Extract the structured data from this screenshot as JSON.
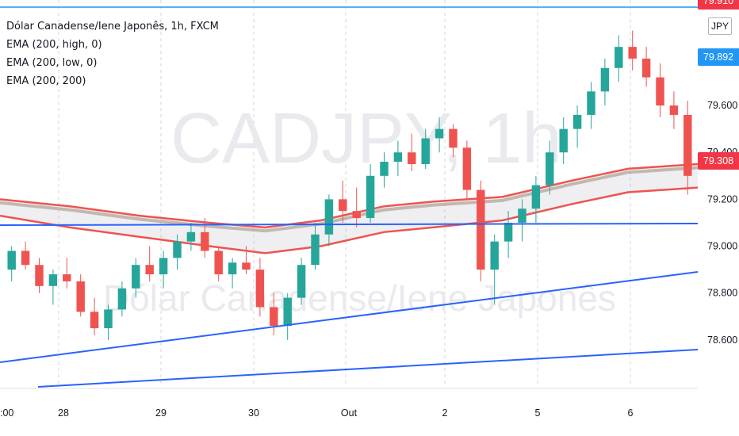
{
  "legend": {
    "title": "Dólar Canadense/Iene Japonês, 1h, FXCM",
    "indicators": [
      "EMA (200, high, 0)",
      "EMA (200, low, 0)",
      "EMA (200, 200)"
    ]
  },
  "watermark": {
    "symbol": "CADJPY, 1h",
    "description": "Dólar Canadense/Iene Japonês"
  },
  "currency_badge": "JPY",
  "price_tags": {
    "top_partial": "79.910",
    "blue": "79.892",
    "red": "79.308"
  },
  "colors": {
    "up_candle": "#26a69a",
    "down_candle": "#ef5350",
    "ema_band": "#ef5350",
    "ema_mid": "#9e8a7a",
    "trend_lines": "#2962ff",
    "blue_tag": "#2196f3",
    "red_tag": "#f23645"
  },
  "chart_data": {
    "type": "candlestick",
    "symbol": "CADJPY",
    "timeframe": "1h",
    "y_ticks": [
      "79.600",
      "79.400",
      "79.200",
      "79.000",
      "78.800",
      "78.600"
    ],
    "ylim": [
      78.4,
      80.05
    ],
    "x_ticks": [
      ":00",
      "28",
      "29",
      "30",
      "Out",
      "2",
      "5",
      "6"
    ],
    "last_price": 79.308,
    "horizontal_line_price": 79.07,
    "ema_high_points": [
      [
        0,
        79.2
      ],
      [
        0.1,
        79.17
      ],
      [
        0.2,
        79.13
      ],
      [
        0.3,
        79.1
      ],
      [
        0.38,
        79.08
      ],
      [
        0.46,
        79.11
      ],
      [
        0.55,
        79.17
      ],
      [
        0.62,
        79.19
      ],
      [
        0.72,
        79.21
      ],
      [
        0.82,
        79.28
      ],
      [
        0.9,
        79.33
      ],
      [
        1,
        79.35
      ]
    ],
    "ema_low_points": [
      [
        0,
        79.13
      ],
      [
        0.1,
        79.08
      ],
      [
        0.2,
        79.04
      ],
      [
        0.3,
        79.0
      ],
      [
        0.38,
        78.97
      ],
      [
        0.46,
        79.0
      ],
      [
        0.55,
        79.06
      ],
      [
        0.62,
        79.08
      ],
      [
        0.72,
        79.11
      ],
      [
        0.82,
        79.18
      ],
      [
        0.9,
        79.23
      ],
      [
        1,
        79.25
      ]
    ],
    "candles": [
      [
        78.9,
        79.0,
        78.85,
        78.98
      ],
      [
        78.98,
        79.02,
        78.9,
        78.92
      ],
      [
        78.92,
        78.95,
        78.8,
        78.83
      ],
      [
        78.83,
        78.9,
        78.75,
        78.88
      ],
      [
        78.88,
        78.95,
        78.82,
        78.85
      ],
      [
        78.85,
        78.88,
        78.7,
        78.72
      ],
      [
        78.72,
        78.78,
        78.62,
        78.65
      ],
      [
        78.65,
        78.75,
        78.6,
        78.73
      ],
      [
        78.73,
        78.85,
        78.7,
        78.82
      ],
      [
        78.82,
        78.95,
        78.78,
        78.92
      ],
      [
        78.92,
        79.0,
        78.85,
        78.88
      ],
      [
        78.88,
        78.98,
        78.82,
        78.95
      ],
      [
        78.95,
        79.05,
        78.9,
        79.02
      ],
      [
        79.02,
        79.1,
        78.98,
        79.06
      ],
      [
        79.06,
        79.12,
        78.95,
        78.98
      ],
      [
        78.98,
        79.0,
        78.85,
        78.88
      ],
      [
        78.88,
        78.95,
        78.82,
        78.93
      ],
      [
        78.93,
        79.0,
        78.88,
        78.9
      ],
      [
        78.9,
        78.95,
        78.7,
        78.74
      ],
      [
        78.74,
        78.8,
        78.62,
        78.66
      ],
      [
        78.66,
        78.8,
        78.6,
        78.78
      ],
      [
        78.78,
        78.95,
        78.75,
        78.92
      ],
      [
        78.92,
        79.1,
        78.9,
        79.05
      ],
      [
        79.05,
        79.22,
        79.0,
        79.2
      ],
      [
        79.2,
        79.28,
        79.1,
        79.15
      ],
      [
        79.15,
        79.25,
        79.08,
        79.12
      ],
      [
        79.12,
        79.35,
        79.1,
        79.3
      ],
      [
        79.3,
        79.4,
        79.25,
        79.36
      ],
      [
        79.36,
        79.45,
        79.3,
        79.4
      ],
      [
        79.4,
        79.48,
        79.32,
        79.35
      ],
      [
        79.35,
        79.5,
        79.33,
        79.46
      ],
      [
        79.46,
        79.55,
        79.4,
        79.5
      ],
      [
        79.5,
        79.52,
        79.38,
        79.42
      ],
      [
        79.42,
        79.45,
        79.2,
        79.24
      ],
      [
        79.24,
        79.28,
        78.85,
        78.9
      ],
      [
        78.9,
        79.05,
        78.75,
        79.02
      ],
      [
        79.02,
        79.15,
        78.95,
        79.1
      ],
      [
        79.1,
        79.2,
        79.02,
        79.16
      ],
      [
        79.16,
        79.3,
        79.1,
        79.26
      ],
      [
        79.26,
        79.45,
        79.22,
        79.4
      ],
      [
        79.4,
        79.55,
        79.35,
        79.5
      ],
      [
        79.5,
        79.6,
        79.42,
        79.56
      ],
      [
        79.56,
        79.7,
        79.5,
        79.66
      ],
      [
        79.66,
        79.8,
        79.6,
        79.76
      ],
      [
        79.76,
        79.9,
        79.7,
        79.85
      ],
      [
        79.85,
        79.92,
        79.75,
        79.8
      ],
      [
        79.8,
        79.85,
        79.68,
        79.72
      ],
      [
        79.72,
        79.78,
        79.55,
        79.6
      ],
      [
        79.6,
        79.66,
        79.5,
        79.56
      ],
      [
        79.56,
        79.62,
        79.22,
        79.3
      ]
    ]
  }
}
